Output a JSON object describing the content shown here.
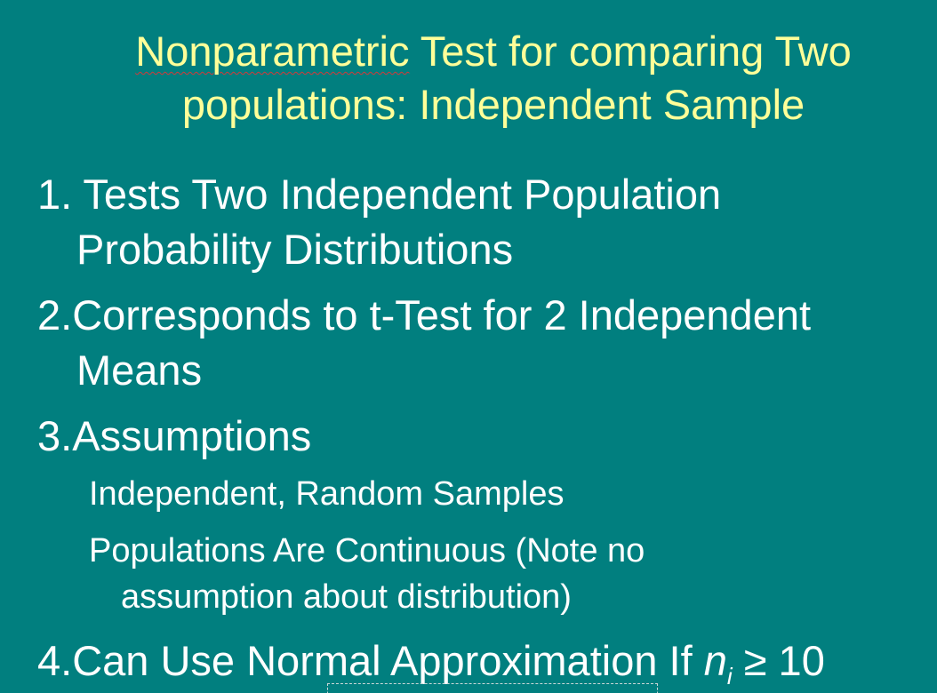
{
  "title": {
    "line1_word": "Nonparametric",
    "line1_rest": " Test for comparing Two",
    "line2": "populations: Independent Sample"
  },
  "items": [
    {
      "line1": "1. Tests Two Independent Population",
      "line2": "Probability Distributions"
    },
    {
      "line1": "2.Corresponds to t-Test for 2 Independent",
      "line2": "Means"
    },
    {
      "line1": "3.Assumptions"
    }
  ],
  "subitems": [
    {
      "line1": "Independent, Random Samples"
    },
    {
      "line1": "Populations Are Continuous (Note no",
      "line2": "assumption about distribution)"
    }
  ],
  "item4": {
    "text": "4.Can Use Normal Approximation If ",
    "var": "n",
    "subscript": "i",
    "relation": " ≥ 10"
  }
}
